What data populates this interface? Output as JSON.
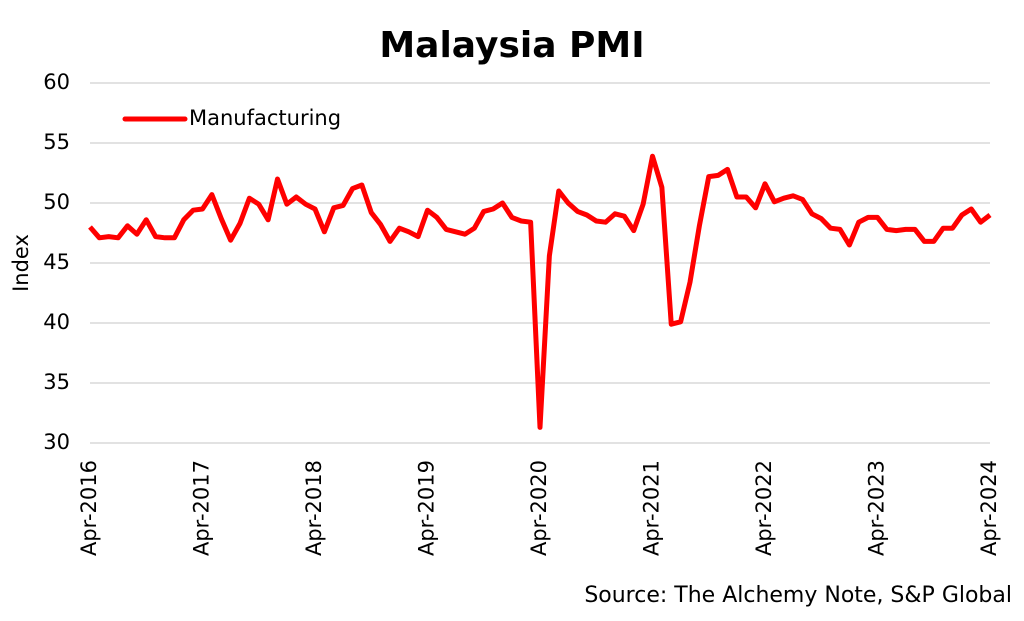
{
  "chart_data": {
    "type": "line",
    "title": "Malaysia PMI",
    "y_label": "Index",
    "source": "Source: The Alchemy Note, S&P Global",
    "legend": "top-left",
    "grid": true,
    "categories": [
      "Apr-2016",
      null,
      null,
      null,
      null,
      null,
      null,
      null,
      null,
      null,
      null,
      null,
      "Apr-2017",
      null,
      null,
      null,
      null,
      null,
      null,
      null,
      null,
      null,
      null,
      null,
      "Apr-2018",
      null,
      null,
      null,
      null,
      null,
      null,
      null,
      null,
      null,
      null,
      null,
      "Apr-2019",
      null,
      null,
      null,
      null,
      null,
      null,
      null,
      null,
      null,
      null,
      null,
      "Apr-2020",
      null,
      null,
      null,
      null,
      null,
      null,
      null,
      null,
      null,
      null,
      null,
      "Apr-2021",
      null,
      null,
      null,
      null,
      null,
      null,
      null,
      null,
      null,
      null,
      null,
      "Apr-2022",
      null,
      null,
      null,
      null,
      null,
      null,
      null,
      null,
      null,
      null,
      null,
      "Apr-2023",
      null,
      null,
      null,
      null,
      null,
      null,
      null,
      null,
      null,
      null,
      null,
      "Apr-2024"
    ],
    "series": [
      {
        "name": "Manufacturing",
        "color": "#ff0000",
        "values": [
          48.0,
          47.1,
          47.2,
          47.1,
          48.1,
          47.4,
          48.6,
          47.2,
          47.1,
          47.1,
          48.6,
          49.4,
          49.5,
          50.7,
          48.7,
          46.9,
          48.3,
          50.4,
          49.9,
          48.6,
          52.0,
          49.9,
          50.5,
          49.9,
          49.5,
          47.6,
          49.6,
          49.8,
          51.2,
          51.5,
          49.2,
          48.2,
          46.8,
          47.9,
          47.6,
          47.2,
          49.4,
          48.8,
          47.8,
          47.6,
          47.4,
          47.9,
          49.3,
          49.5,
          50.0,
          48.8,
          48.5,
          48.4,
          31.3,
          45.6,
          51.0,
          50.0,
          49.3,
          49.0,
          48.5,
          48.4,
          49.1,
          48.9,
          47.7,
          49.9,
          53.9,
          51.3,
          39.9,
          40.1,
          43.4,
          48.1,
          52.2,
          52.3,
          52.8,
          50.5,
          50.5,
          49.6,
          51.6,
          50.1,
          50.4,
          50.6,
          50.3,
          49.1,
          48.7,
          47.9,
          47.8,
          46.5,
          48.4,
          48.8,
          48.8,
          47.8,
          47.7,
          47.8,
          47.8,
          46.8,
          46.8,
          47.9,
          47.9,
          49.0,
          49.5,
          48.4,
          49.0
        ]
      }
    ],
    "ylim": [
      30,
      60
    ],
    "yticks": [
      30,
      35,
      40,
      45,
      50,
      55,
      60
    ]
  }
}
